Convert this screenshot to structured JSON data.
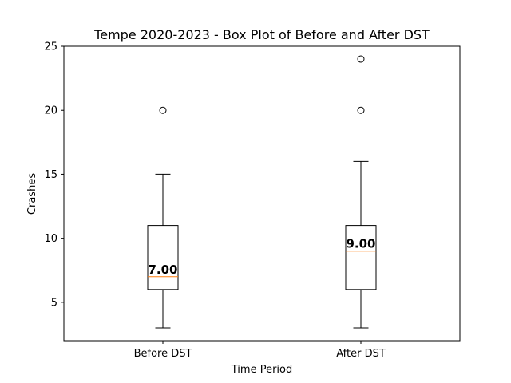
{
  "chart_data": {
    "type": "box",
    "title": "Tempe 2020-2023 - Box Plot of Before and After DST",
    "xlabel": "Time Period",
    "ylabel": "Crashes",
    "ylim": [
      2,
      25
    ],
    "yticks": [
      5,
      10,
      15,
      20,
      25
    ],
    "grid": false,
    "categories": [
      "Before DST",
      "After DST"
    ],
    "boxes": [
      {
        "category": "Before DST",
        "whisker_low": 3,
        "q1": 6,
        "median": 7,
        "q3": 11,
        "whisker_high": 15,
        "outliers": [
          20
        ],
        "median_label": "7.00"
      },
      {
        "category": "After DST",
        "whisker_low": 3,
        "q1": 6,
        "median": 9,
        "q3": 11,
        "whisker_high": 16,
        "outliers": [
          20,
          24
        ],
        "median_label": "9.00"
      }
    ],
    "colors": {
      "box": "#000000",
      "median": "#ff7f0e",
      "outlier": "#000000"
    }
  }
}
